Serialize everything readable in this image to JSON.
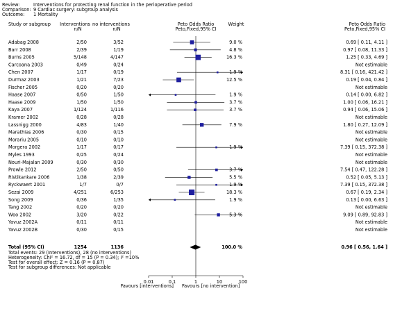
{
  "header": {
    "review_label": "Review:",
    "review": "Interventions for protecting renal function in the perioperative period",
    "comparison_label": "Comparison:",
    "comparison": "9 Cardiac surgery: subgroup analysis",
    "outcome_label": "Outcome:",
    "outcome": "1 Mortality"
  },
  "columns": {
    "study": "Study or subgroup",
    "int": "Interventions",
    "int_sub": "n/N",
    "ctrl": "no interventions",
    "ctrl_sub": "n/N",
    "plot": "Peto Odds Ratio",
    "plot_sub": "Peto,Fixed,95% CI",
    "weight": "Weight",
    "effect": "Peto Odds Ratio",
    "effect_sub": "Peto,Fixed,95% CI"
  },
  "plot": {
    "xlim": [
      0.01,
      100
    ],
    "xticks": [
      0.01,
      0.1,
      1,
      10,
      100
    ],
    "log": true,
    "color": "#1f1f9f",
    "left_label": "Favours [interventions]",
    "right_label": "Favours [no intervention]"
  },
  "studies": [
    {
      "name": "Adabag 2008",
      "int": "2/50",
      "ctrl": "3/52",
      "weight": 9.0,
      "weight_label": "9.0 %",
      "effect": "0.69 [ 0.11, 4.11 ]",
      "or": 0.69,
      "ci": [
        0.11,
        4.11
      ]
    },
    {
      "name": "Barr 2008",
      "int": "2/39",
      "ctrl": "1/19",
      "weight": 4.8,
      "weight_label": "4.8 %",
      "effect": "0.97 [ 0.08, 11.33 ]",
      "or": 0.97,
      "ci": [
        0.08,
        11.33
      ]
    },
    {
      "name": "Burns 2005",
      "int": "5/148",
      "ctrl": "4/147",
      "weight": 16.3,
      "weight_label": "16.3 %",
      "effect": "1.25 [ 0.33, 4.69 ]",
      "or": 1.25,
      "ci": [
        0.33,
        4.69
      ]
    },
    {
      "name": "Carcoana 2003",
      "int": "0/49",
      "ctrl": "0/24",
      "effect": "Not estimable"
    },
    {
      "name": "Chen 2007",
      "int": "1/17",
      "ctrl": "0/19",
      "weight": 1.9,
      "weight_label": "1.9 %",
      "effect": "8.31 [ 0.16, 421.42 ]",
      "or": 8.31,
      "ci": [
        0.16,
        421.42
      ]
    },
    {
      "name": "Durmaz 2003",
      "int": "1/21",
      "ctrl": "7/23",
      "weight": 12.5,
      "weight_label": "12.5 %",
      "effect": "0.19 [ 0.04, 0.84 ]",
      "or": 0.19,
      "ci": [
        0.04,
        0.84
      ]
    },
    {
      "name": "Fischer 2005",
      "int": "0/20",
      "ctrl": "0/20",
      "effect": "Not estimable"
    },
    {
      "name": "Haase 2007",
      "int": "0/50",
      "ctrl": "1/50",
      "weight": 1.9,
      "weight_label": "1.9 %",
      "effect": "0.14 [ 0.00, 6.82 ]",
      "or": 0.14,
      "ci": [
        0.0,
        6.82
      ]
    },
    {
      "name": "Haase 2009",
      "int": "1/50",
      "ctrl": "1/50",
      "weight": 3.7,
      "weight_label": "3.7 %",
      "effect": "1.00 [ 0.06, 16.21 ]",
      "or": 1.0,
      "ci": [
        0.06,
        16.21
      ]
    },
    {
      "name": "Kaya 2007",
      "int": "1/124",
      "ctrl": "1/116",
      "weight": 3.7,
      "weight_label": "3.7 %",
      "effect": "0.94 [ 0.06, 15.06 ]",
      "or": 0.94,
      "ci": [
        0.06,
        15.06
      ]
    },
    {
      "name": "Kramer 2002",
      "int": "0/28",
      "ctrl": "0/28",
      "effect": "Not estimable"
    },
    {
      "name": "Lassnigg 2000",
      "int": "4/83",
      "ctrl": "1/40",
      "weight": 7.9,
      "weight_label": "7.9 %",
      "effect": "1.80 [ 0.27, 12.09 ]",
      "or": 1.8,
      "ci": [
        0.27,
        12.09
      ]
    },
    {
      "name": "Marathias 2006",
      "int": "0/30",
      "ctrl": "0/15",
      "effect": "Not estimable"
    },
    {
      "name": "Morariu 2005",
      "int": "0/10",
      "ctrl": "0/10",
      "effect": "Not estimable"
    },
    {
      "name": "Morgera 2002",
      "int": "1/17",
      "ctrl": "0/17",
      "weight": 1.9,
      "weight_label": "1.9 %",
      "effect": "7.39 [ 0.15, 372.38 ]",
      "or": 7.39,
      "ci": [
        0.15,
        372.38
      ]
    },
    {
      "name": "Myles 1993",
      "int": "0/25",
      "ctrl": "0/24",
      "effect": "Not estimable"
    },
    {
      "name": "Nouri-Majalan 2009",
      "int": "0/30",
      "ctrl": "0/30",
      "effect": "Not estimable"
    },
    {
      "name": "Prowle 2012",
      "int": "2/50",
      "ctrl": "0/50",
      "weight": 3.7,
      "weight_label": "3.7 %",
      "effect": "7.54 [ 0.47, 122.28 ]",
      "or": 7.54,
      "ci": [
        0.47,
        122.28
      ]
    },
    {
      "name": "Ristikankare 2006",
      "int": "1/38",
      "ctrl": "2/39",
      "weight": 5.5,
      "weight_label": "5.5 %",
      "effect": "0.52 [ 0.05, 5.13 ]",
      "or": 0.52,
      "ci": [
        0.05,
        5.13
      ]
    },
    {
      "name": "Ryckwaert 2001",
      "int": "1/7",
      "ctrl": "0/7",
      "weight": 1.9,
      "weight_label": "1.9 %",
      "effect": "7.39 [ 0.15, 372.38 ]",
      "or": 7.39,
      "ci": [
        0.15,
        372.38
      ]
    },
    {
      "name": "Sezai 2009",
      "int": "4/251",
      "ctrl": "6/253",
      "weight": 18.3,
      "weight_label": "18.3 %",
      "effect": "0.67 [ 0.19, 2.34 ]",
      "or": 0.67,
      "ci": [
        0.19,
        2.34
      ]
    },
    {
      "name": "Song 2009",
      "int": "0/36",
      "ctrl": "1/35",
      "weight": 1.9,
      "weight_label": "1.9 %",
      "effect": "0.13 [ 0.00, 6.63 ]",
      "or": 0.13,
      "ci": [
        0.0,
        6.63
      ]
    },
    {
      "name": "Tang 2002",
      "int": "0/20",
      "ctrl": "0/20",
      "effect": "Not estimable"
    },
    {
      "name": "Woo 2002",
      "int": "3/20",
      "ctrl": "0/22",
      "weight": 5.3,
      "weight_label": "5.3 %",
      "effect": "9.09 [ 0.89, 92.83 ]",
      "or": 9.09,
      "ci": [
        0.89,
        92.83
      ]
    },
    {
      "name": "Yavuz 2002A",
      "int": "0/11",
      "ctrl": "0/11",
      "effect": "Not estimable"
    },
    {
      "name": "Yavuz 2002B",
      "int": "0/30",
      "ctrl": "0/15",
      "effect": "Not estimable"
    }
  ],
  "total": {
    "name": "Total (95% CI)",
    "int": "1254",
    "ctrl": "1136",
    "weight_label": "100.0 %",
    "effect": "0.96 [ 0.56, 1.64 ]",
    "or": 0.96,
    "ci": [
      0.56,
      1.64
    ]
  },
  "notes": [
    "Total events: 29 (Interventions), 28 (no interventions)",
    "Heterogeneity: Chi² = 16.72, df = 15 (P = 0.34); I² =10%",
    "Test for overall effect: Z = 0.16 (P = 0.87)",
    "Test for subgroup differences: Not applicable"
  ]
}
